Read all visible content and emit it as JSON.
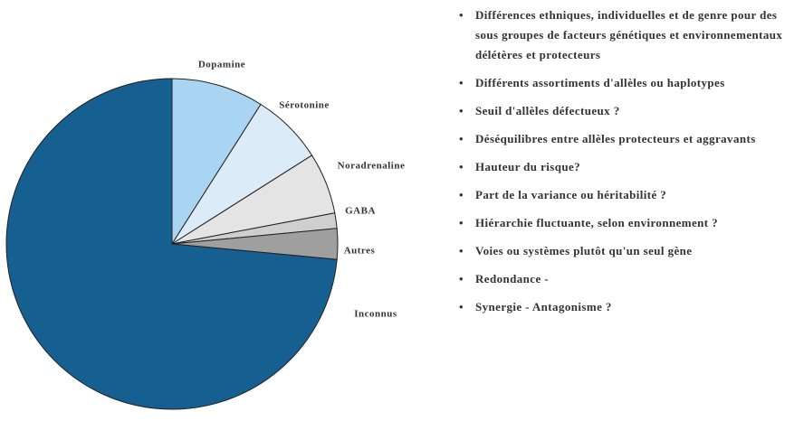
{
  "chart_data": {
    "type": "pie",
    "categories": [
      "Dopamine",
      "Sérotonine",
      "Noradrenaline",
      "GABA",
      "Autres",
      "Inconnus"
    ],
    "values": [
      9,
      7,
      6,
      1.5,
      3,
      73.5
    ],
    "colors": [
      "#a9d5f2",
      "#dcebf8",
      "#e4e4e4",
      "#cfcfcf",
      "#9f9f9f",
      "#155f91"
    ]
  },
  "bullet_list": [
    "Différences ethniques, individuelles et de genre pour des sous groupes de facteurs génétiques et environnementaux délétères et protecteurs",
    "Différents assortiments d'allèles ou haplotypes",
    "Seuil d'allèles défectueux ?",
    "Déséquilibres entre allèles protecteurs et aggravants",
    "Hauteur du risque?",
    "Part de la variance ou héritabilité ?",
    "Hiérarchie fluctuante, selon environnement ?",
    "Voies ou systèmes plutôt qu'un seul gène",
    "Redondance -",
    "Synergie - Antagonisme ?"
  ]
}
